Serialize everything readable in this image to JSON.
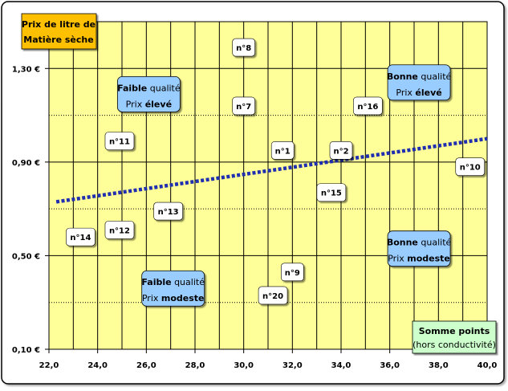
{
  "chart_data": {
    "type": "scatter",
    "title": "",
    "ylabel_lines": [
      "Prix de litre de",
      "Matière sèche"
    ],
    "xlabel_lines": [
      "Somme points",
      "(hors conductivité)"
    ],
    "xlim": [
      22,
      40
    ],
    "ylim": [
      0.1,
      1.5
    ],
    "x_ticks": [
      22,
      24,
      26,
      28,
      30,
      32,
      34,
      36,
      38,
      40
    ],
    "x_tick_labels": [
      "22,0",
      "24,0",
      "26,0",
      "28,0",
      "30,0",
      "32,0",
      "34,0",
      "36,0",
      "38,0",
      "40,0"
    ],
    "y_ticks": [
      0.1,
      0.5,
      0.9,
      1.3
    ],
    "y_tick_labels": [
      "0,10 €",
      "0,50 €",
      "0,90 €",
      "1,30 €"
    ],
    "grid": true,
    "trendline": {
      "x": [
        22.3,
        40
      ],
      "y": [
        0.73,
        1.0
      ],
      "style": "dotted",
      "color": "#1f2fb0"
    },
    "points": [
      {
        "label": "n°8",
        "x": 30.0,
        "y": 1.39
      },
      {
        "label": "n°7",
        "x": 30.0,
        "y": 1.14
      },
      {
        "label": "n°16",
        "x": 35.1,
        "y": 1.14
      },
      {
        "label": "n°11",
        "x": 24.9,
        "y": 0.99
      },
      {
        "label": "n°1",
        "x": 31.6,
        "y": 0.95
      },
      {
        "label": "n°2",
        "x": 34.0,
        "y": 0.95
      },
      {
        "label": "n°10",
        "x": 39.3,
        "y": 0.88
      },
      {
        "label": "n°15",
        "x": 33.6,
        "y": 0.77
      },
      {
        "label": "n°13",
        "x": 26.9,
        "y": 0.69
      },
      {
        "label": "n°12",
        "x": 24.9,
        "y": 0.61
      },
      {
        "label": "n°14",
        "x": 23.3,
        "y": 0.58
      },
      {
        "label": "n°9",
        "x": 32.0,
        "y": 0.43
      },
      {
        "label": "n°20",
        "x": 31.2,
        "y": 0.33
      }
    ],
    "quadrant_labels": [
      {
        "id": "tl",
        "x": 26.1,
        "y": 1.19,
        "line1": [
          "Faible",
          " qualité"
        ],
        "line2": [
          "Prix ",
          "élevé"
        ]
      },
      {
        "id": "tr",
        "x": 37.2,
        "y": 1.24,
        "line1": [
          "Bonne",
          " qualité"
        ],
        "line2": [
          "Prix ",
          "élevé"
        ]
      },
      {
        "id": "bl",
        "x": 27.1,
        "y": 0.36,
        "line1": [
          "Faible",
          " qualité"
        ],
        "line2": [
          "Prix ",
          "modeste"
        ]
      },
      {
        "id": "br",
        "x": 37.2,
        "y": 0.53,
        "line1": [
          "Bonne",
          " qualité"
        ],
        "line2": [
          "Prix ",
          "modeste"
        ]
      }
    ]
  },
  "colors": {
    "plot_bg": "#ffff99",
    "grid": "#000000",
    "ylabel_box": "#ffc000",
    "xlabel_box": "#ccffcc",
    "quadrant_box": "#99ccff",
    "trendline": "#1f2fb0"
  }
}
